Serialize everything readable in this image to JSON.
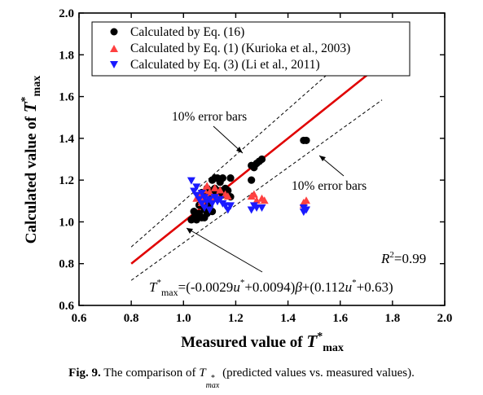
{
  "caption": {
    "label": "Fig. 9.",
    "text_before": "The comparison of ",
    "symbol": "T",
    "symbol_sup": "*",
    "symbol_sub": "max",
    "text_after": " (predicted values vs. measured values)."
  },
  "chart_data": {
    "type": "scatter",
    "title": "",
    "xlabel": {
      "text": "Measured value of ",
      "symbol": "T",
      "sup": "*",
      "sub": "max"
    },
    "ylabel": {
      "text": "Calculated value of ",
      "symbol": "T",
      "sup": "*",
      "sub": "max"
    },
    "xlim": [
      0.6,
      2.0
    ],
    "ylim": [
      0.6,
      2.0
    ],
    "xticks": [
      "0.6",
      "0.8",
      "1.0",
      "1.2",
      "1.4",
      "1.6",
      "1.8",
      "2.0"
    ],
    "yticks": [
      "0.6",
      "0.8",
      "1.0",
      "1.2",
      "1.4",
      "1.6",
      "1.8",
      "2.0"
    ],
    "grid": false,
    "legend_position": "top-left",
    "series": [
      {
        "name": "Calculated by Eq. (16)",
        "marker": "circle",
        "color": "#000000",
        "points": [
          [
            1.03,
            1.01
          ],
          [
            1.04,
            1.02
          ],
          [
            1.05,
            1.01
          ],
          [
            1.05,
            1.03
          ],
          [
            1.06,
            1.04
          ],
          [
            1.07,
            1.02
          ],
          [
            1.04,
            1.05
          ],
          [
            1.06,
            1.08
          ],
          [
            1.07,
            1.1
          ],
          [
            1.08,
            1.12
          ],
          [
            1.09,
            1.1
          ],
          [
            1.1,
            1.08
          ],
          [
            1.1,
            1.14
          ],
          [
            1.11,
            1.15
          ],
          [
            1.12,
            1.12
          ],
          [
            1.12,
            1.16
          ],
          [
            1.13,
            1.14
          ],
          [
            1.14,
            1.15
          ],
          [
            1.15,
            1.13
          ],
          [
            1.16,
            1.16
          ],
          [
            1.17,
            1.15
          ],
          [
            1.12,
            1.21
          ],
          [
            1.13,
            1.21
          ],
          [
            1.15,
            1.21
          ],
          [
            1.11,
            1.2
          ],
          [
            1.18,
            1.21
          ],
          [
            1.18,
            1.12
          ],
          [
            1.08,
            1.06
          ],
          [
            1.09,
            1.04
          ],
          [
            1.08,
            1.02
          ],
          [
            1.11,
            1.05
          ],
          [
            1.06,
            1.12
          ],
          [
            1.07,
            1.14
          ],
          [
            1.09,
            1.16
          ],
          [
            1.14,
            1.19
          ],
          [
            1.26,
            1.2
          ],
          [
            1.26,
            1.27
          ],
          [
            1.27,
            1.26
          ],
          [
            1.28,
            1.28
          ],
          [
            1.29,
            1.29
          ],
          [
            1.3,
            1.3
          ],
          [
            1.46,
            1.39
          ],
          [
            1.47,
            1.39
          ]
        ]
      },
      {
        "name": "Calculated by Eq. (1) (Kurioka et al., 2003)",
        "marker": "triangle-up",
        "color": "#ff4040",
        "points": [
          [
            1.05,
            1.11
          ],
          [
            1.06,
            1.13
          ],
          [
            1.07,
            1.1
          ],
          [
            1.08,
            1.15
          ],
          [
            1.09,
            1.12
          ],
          [
            1.1,
            1.14
          ],
          [
            1.11,
            1.11
          ],
          [
            1.12,
            1.16
          ],
          [
            1.13,
            1.12
          ],
          [
            1.14,
            1.15
          ],
          [
            1.16,
            1.13
          ],
          [
            1.17,
            1.12
          ],
          [
            1.09,
            1.17
          ],
          [
            1.07,
            1.09
          ],
          [
            1.26,
            1.12
          ],
          [
            1.27,
            1.13
          ],
          [
            1.28,
            1.1
          ],
          [
            1.3,
            1.11
          ],
          [
            1.31,
            1.1
          ],
          [
            1.46,
            1.09
          ],
          [
            1.47,
            1.1
          ],
          [
            1.46,
            1.08
          ]
        ]
      },
      {
        "name": "Calculated by Eq. (3) (Li et al., 2011)",
        "marker": "triangle-down",
        "color": "#1a1aff",
        "points": [
          [
            1.03,
            1.2
          ],
          [
            1.04,
            1.15
          ],
          [
            1.05,
            1.13
          ],
          [
            1.05,
            1.17
          ],
          [
            1.06,
            1.11
          ],
          [
            1.07,
            1.09
          ],
          [
            1.07,
            1.14
          ],
          [
            1.08,
            1.12
          ],
          [
            1.09,
            1.1
          ],
          [
            1.1,
            1.11
          ],
          [
            1.11,
            1.09
          ],
          [
            1.12,
            1.12
          ],
          [
            1.13,
            1.1
          ],
          [
            1.14,
            1.11
          ],
          [
            1.15,
            1.09
          ],
          [
            1.16,
            1.08
          ],
          [
            1.17,
            1.06
          ],
          [
            1.18,
            1.08
          ],
          [
            1.08,
            1.07
          ],
          [
            1.1,
            1.06
          ],
          [
            1.26,
            1.06
          ],
          [
            1.27,
            1.08
          ],
          [
            1.28,
            1.07
          ],
          [
            1.3,
            1.07
          ],
          [
            1.46,
            1.05
          ],
          [
            1.47,
            1.06
          ],
          [
            1.46,
            1.07
          ]
        ]
      }
    ],
    "fit_line": {
      "color": "#e00000",
      "from": [
        0.8,
        0.8
      ],
      "to": [
        1.76,
        1.76
      ]
    },
    "error_bands": {
      "percent": 10,
      "style": "dashed",
      "x_range": [
        0.8,
        1.76
      ]
    },
    "annotations": {
      "error_bars_upper": "10% error bars",
      "error_bars_lower": "10% error bars",
      "r2": {
        "prefix": "R",
        "sup": "2",
        "value": "=0.99"
      },
      "equation": {
        "parts": [
          {
            "t": "T",
            "style": "italic"
          },
          {
            "t": "*",
            "style": "sup"
          },
          {
            "t": "max",
            "style": "sub"
          },
          {
            "t": "=(-0.0029",
            "style": "normal"
          },
          {
            "t": "u",
            "style": "italic"
          },
          {
            "t": "*",
            "style": "sup"
          },
          {
            "t": "+0.0094)",
            "style": "normal"
          },
          {
            "t": "β",
            "style": "italic"
          },
          {
            "t": "+(0.112",
            "style": "normal"
          },
          {
            "t": "u",
            "style": "italic"
          },
          {
            "t": "*",
            "style": "sup"
          },
          {
            "t": "+0.63)",
            "style": "normal"
          }
        ]
      }
    }
  }
}
